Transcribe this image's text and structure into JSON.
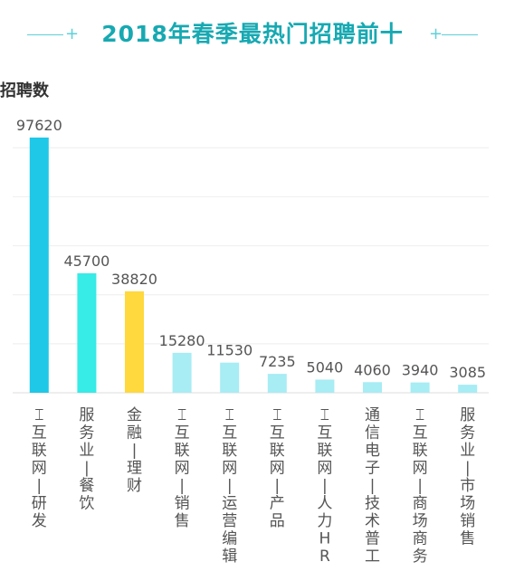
{
  "chart_data": {
    "type": "bar",
    "title": "2018年春季最热门招聘前十",
    "ylabel": "招聘数",
    "xlabel": "",
    "ylim": [
      0,
      100000
    ],
    "grid": "horizontal",
    "categories": [
      "互联网-研发",
      "服务业-餐饮",
      "金融-理财",
      "互联网-销售",
      "互联网-运营编辑",
      "互联网-产品",
      "互联网-人力HR",
      "通信电子-技术普工",
      "互联网-商场商务",
      "服务业-市场销售"
    ],
    "category_display": [
      "⌶互联网-研发",
      "服务业-餐饮",
      "金融-理财",
      "⌶互联网-销售",
      "⌶互联网-运营编辑",
      "⌶互联网-产品",
      "⌶互联网-人力HR",
      "通信电子-技术普工",
      "⌶互联网-商场商务",
      "服务业-市场销售"
    ],
    "values": [
      97620,
      45700,
      38820,
      15280,
      11530,
      7235,
      5040,
      4060,
      3940,
      3085
    ],
    "colors": [
      "#1ec8e6",
      "#37ebe6",
      "#ffd93d",
      "#a8ecf4",
      "#a8ecf4",
      "#a8ecf4",
      "#a8ecf4",
      "#a8ecf4",
      "#a8ecf4",
      "#a8ecf4"
    ],
    "title_color": "#17a9b2"
  }
}
